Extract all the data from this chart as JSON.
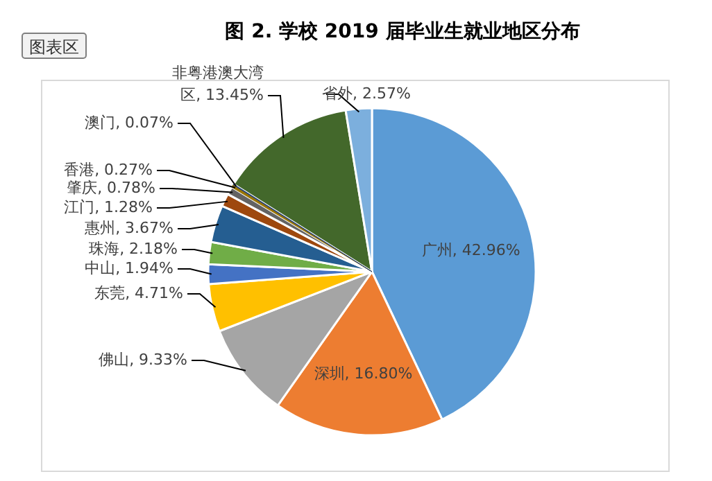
{
  "chart_data": {
    "type": "pie",
    "title": "图 2. 学校 2019 届毕业生就业地区分布",
    "categories": [
      "广州",
      "深圳",
      "佛山",
      "东莞",
      "中山",
      "珠海",
      "惠州",
      "江门",
      "肇庆",
      "香港",
      "澳门",
      "非粤港澳大湾区",
      "省外"
    ],
    "values": [
      42.96,
      16.8,
      9.33,
      4.71,
      1.94,
      2.18,
      3.67,
      1.28,
      0.78,
      0.27,
      0.07,
      13.45,
      2.57
    ],
    "value_labels": [
      "42.96%",
      "16.80%",
      "9.33%",
      "4.71%",
      "1.94%",
      "2.18%",
      "3.67%",
      "1.28%",
      "0.78%",
      "0.27%",
      "0.07%",
      "13.45%",
      "2.57%"
    ],
    "colors": [
      "#5b9bd5",
      "#ed7d31",
      "#a5a5a5",
      "#ffc000",
      "#4472c4",
      "#70ad47",
      "#255e91",
      "#9e480e",
      "#636363",
      "#997300",
      "#264478",
      "#43682b",
      "#7cafdd"
    ],
    "annotations": [
      "图表区"
    ]
  }
}
